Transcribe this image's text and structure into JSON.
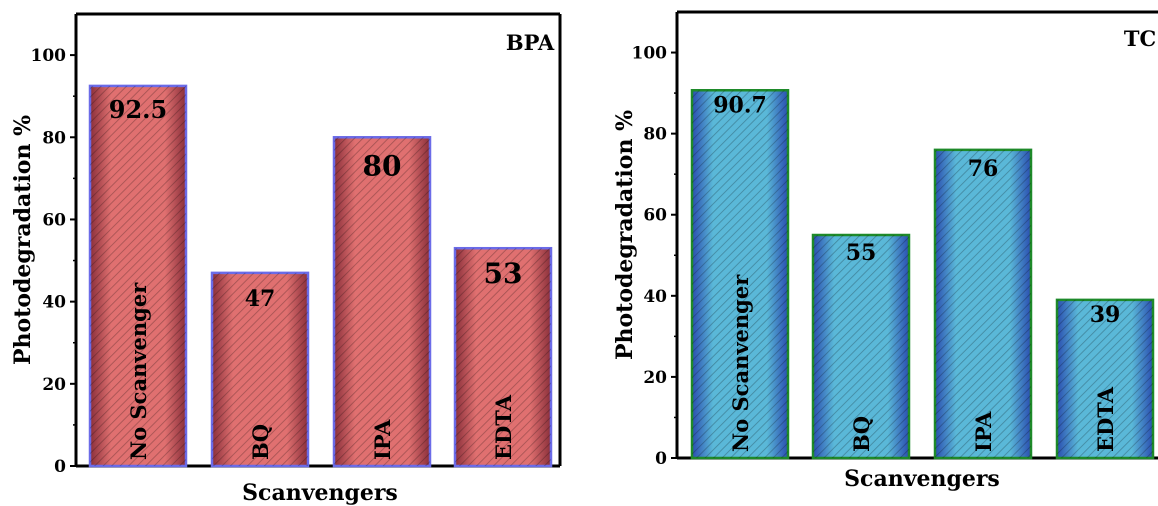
{
  "chart_data": [
    {
      "type": "bar",
      "title": "BPA",
      "xlabel": "Scanvengers",
      "ylabel": "Photodegradation %",
      "ylim": [
        0,
        110
      ],
      "yticks": [
        0,
        20,
        40,
        60,
        80,
        100
      ],
      "categories": [
        "No Scanvenger",
        "BQ",
        "IPA",
        "EDTA"
      ],
      "values": [
        92.5,
        47,
        80,
        53
      ],
      "value_labels": [
        "92.5",
        "47",
        "80",
        "53"
      ],
      "colors": {
        "bar_fill": "#e07070",
        "bar_dark": "#8a2f3a",
        "bar_edge": "#6b6be8"
      }
    },
    {
      "type": "bar",
      "title": "TC",
      "xlabel": "Scanvengers",
      "ylabel": "Photodegradation %",
      "ylim": [
        0,
        110
      ],
      "yticks": [
        0,
        20,
        40,
        60,
        80,
        100
      ],
      "categories": [
        "No Scanvenger",
        "BQ",
        "IPA",
        "EDTA"
      ],
      "values": [
        90.7,
        55,
        76,
        39
      ],
      "value_labels": [
        "90.7",
        "55",
        "76",
        "39"
      ],
      "colors": {
        "bar_fill": "#5ab8d8",
        "bar_dark": "#2a4db0",
        "bar_edge": "#1e8a2a"
      }
    }
  ]
}
